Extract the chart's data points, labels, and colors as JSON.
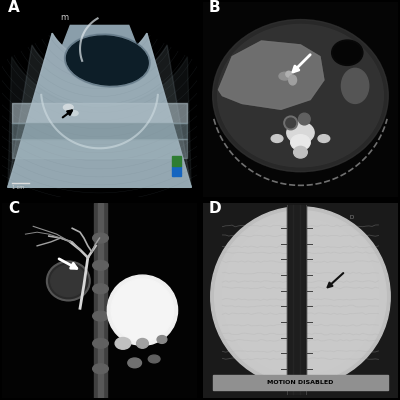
{
  "figure_size": [
    4.0,
    4.0
  ],
  "dpi": 100,
  "background_color": "#000000",
  "label_color": "#ffffff",
  "label_fontsize": 11,
  "label_fontweight": "bold",
  "wspace": 0.03,
  "hspace": 0.03,
  "panel_A": {
    "label": "A",
    "bg_color": "#000000",
    "fan_outer_color": "#b0bec5",
    "fan_mid_color": "#90a4ae",
    "fan_inner_color": "#78909c",
    "cyst_color": "#1a2a35",
    "tissue_color": "#aab8c0",
    "arrow_color": "#000000",
    "colorbar_blue": "#1565c0",
    "colorbar_green": "#2e7d32",
    "text_m_color": "#cccccc"
  },
  "panel_B": {
    "label": "B",
    "bg_color": "#050505",
    "body_outer": "#252525",
    "liver_color": "#6a6a6a",
    "liver_dark": "#505050",
    "spleen_color": "#3a3a3a",
    "spine_white": "#e0e0e0",
    "spine_gray": "#b0b0b0",
    "stomach_dark": "#0a0a0a",
    "arrow_color": "#ffffff",
    "table_arc_color": "#707070"
  },
  "panel_C": {
    "label": "C",
    "bg_color": "#030303",
    "spine_bar_color": "#555555",
    "duct_bright": "#e8e8e8",
    "duct_mid": "#c0c0c0",
    "liver_blob_color": "#404040",
    "gb_color": "#f0f0f0",
    "gb_color2": "#d8d8d8",
    "spleen_dark": "#0a0a0a",
    "kidney_color": "#252525",
    "arrow_color": "#ffffff",
    "small_bright": "#888888"
  },
  "panel_D": {
    "label": "D",
    "bg_color": "#1a1a1a",
    "circle_color": "#c8c8c8",
    "scope_color": "#111111",
    "scope_highlight": "#444444",
    "tissue_lines_color": "#a0a0a0",
    "arrow_color": "#111111",
    "bottom_bar_color": "#909090",
    "bottom_text": "MOTION DISABLED",
    "bottom_text_color": "#000000",
    "top_info_color": "#222222"
  }
}
